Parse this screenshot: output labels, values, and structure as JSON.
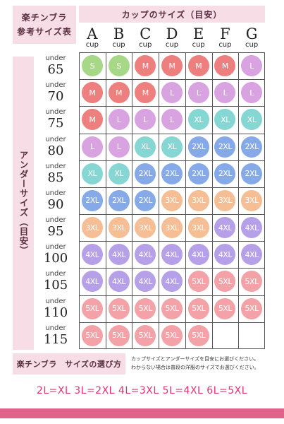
{
  "header": {
    "title_lines": [
      "楽チンブラ",
      "参考サイズ表"
    ],
    "cup_title": "カップのサイズ（目安）"
  },
  "cups": [
    {
      "letter": "A",
      "sub": "cup"
    },
    {
      "letter": "B",
      "sub": "cup"
    },
    {
      "letter": "C",
      "sub": "cup"
    },
    {
      "letter": "D",
      "sub": "cup"
    },
    {
      "letter": "E",
      "sub": "cup"
    },
    {
      "letter": "F",
      "sub": "cup"
    },
    {
      "letter": "G",
      "sub": "cup"
    }
  ],
  "side_label": "アンダーサイズ（目安）",
  "rows": [
    {
      "under": "under",
      "value": "65",
      "sizes": [
        "S",
        "S",
        "M",
        "M",
        "M",
        "M",
        "L"
      ]
    },
    {
      "under": "under",
      "value": "70",
      "sizes": [
        "M",
        "M",
        "M",
        "L",
        "L",
        "L",
        "L"
      ]
    },
    {
      "under": "under",
      "value": "75",
      "sizes": [
        "M",
        "L",
        "L",
        "L",
        "XL",
        "XL",
        "XL"
      ]
    },
    {
      "under": "under",
      "value": "80",
      "sizes": [
        "L",
        "L",
        "XL",
        "XL",
        "2XL",
        "2XL",
        "2XL"
      ]
    },
    {
      "under": "under",
      "value": "85",
      "sizes": [
        "XL",
        "XL",
        "2XL",
        "2XL",
        "2XL",
        "2XL",
        "2XL"
      ]
    },
    {
      "under": "under",
      "value": "90",
      "sizes": [
        "2XL",
        "2XL",
        "2XL",
        "3XL",
        "3XL",
        "3XL",
        "3XL"
      ]
    },
    {
      "under": "under",
      "value": "95",
      "sizes": [
        "3XL",
        "3XL",
        "3XL",
        "3XL",
        "3XL",
        "4XL",
        "4XL"
      ]
    },
    {
      "under": "under",
      "value": "100",
      "sizes": [
        "4XL",
        "4XL",
        "4XL",
        "4XL",
        "4XL",
        "4XL",
        "4XL"
      ]
    },
    {
      "under": "under",
      "value": "105",
      "sizes": [
        "4XL",
        "4XL",
        "4XL",
        "4XL",
        "5XL",
        "5XL",
        "5XL"
      ]
    },
    {
      "under": "under",
      "value": "110",
      "sizes": [
        "5XL",
        "5XL",
        "5XL",
        "5XL",
        "5XL",
        "5XL",
        "5XL"
      ]
    },
    {
      "under": "under",
      "value": "115",
      "sizes": [
        "5XL",
        "5XL",
        "5XL",
        "5XL",
        "5XL",
        "",
        ""
      ]
    }
  ],
  "size_colors": {
    "S": "#a6d887",
    "M": "#ee7f7f",
    "L": "#d9a3e2",
    "XL": "#86d6d3",
    "2XL": "#86a9e8",
    "3XL": "#f5be95",
    "4XL": "#b6a0e8",
    "5XL": "#f3a3a7"
  },
  "footer": {
    "label": "楽チンブラ　サイズの選び方",
    "note_lines": [
      "カップサイズとアンダーサイズを目安にお選びください。",
      "わからない場合は普段の洋服のサイズでお選びください。"
    ]
  },
  "conversion": "2L=XL 3L=2XL 4L=3XL 5L=4XL 6L=5XL",
  "colors": {
    "accent_pink": "#e0638a",
    "header_bg": "#f7dde6",
    "conversion_text": "#e2336f"
  }
}
